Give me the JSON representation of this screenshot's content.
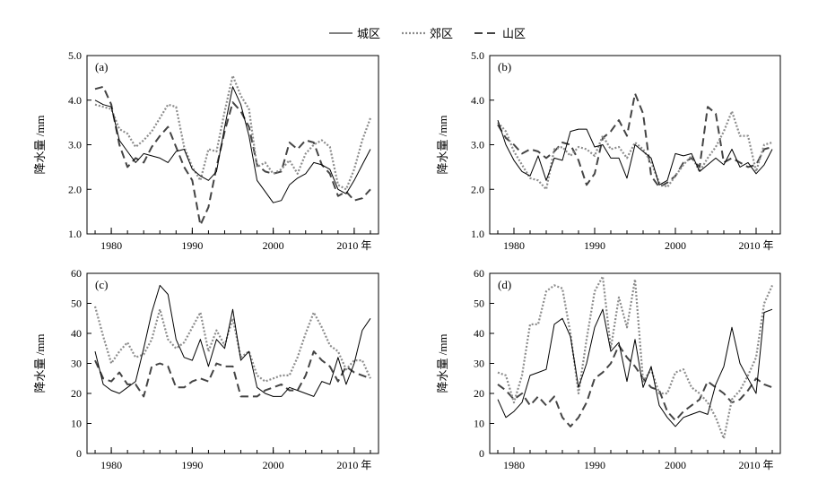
{
  "legend": {
    "items": [
      {
        "name": "城区",
        "color": "#000000",
        "style": "solid"
      },
      {
        "name": "郊区",
        "color": "#8c8c8c",
        "style": "dotted"
      },
      {
        "name": "山区",
        "color": "#444444",
        "style": "dashed"
      }
    ],
    "placement": "top-center"
  },
  "chart_data": [
    {
      "type": "line",
      "panel_label": "(a)",
      "ylabel": "降水量 /mm",
      "xlabel": "年",
      "ylim": [
        1.0,
        5.0
      ],
      "yticks": [
        "1.0",
        "2.0",
        "3.0",
        "4.0",
        "5.0"
      ],
      "xlim": [
        1977,
        2013
      ],
      "xticks": [
        1980,
        1990,
        2000,
        2010
      ],
      "grid": false,
      "x": [
        1978,
        1979,
        1980,
        1981,
        1982,
        1983,
        1984,
        1985,
        1986,
        1987,
        1988,
        1989,
        1990,
        1991,
        1992,
        1993,
        1994,
        1995,
        1996,
        1997,
        1998,
        1999,
        2000,
        2001,
        2002,
        2003,
        2004,
        2005,
        2006,
        2007,
        2008,
        2009,
        2010,
        2011,
        2012
      ],
      "series": [
        {
          "name": "城区",
          "values": [
            4.0,
            3.9,
            3.85,
            3.1,
            2.85,
            2.6,
            2.8,
            2.75,
            2.7,
            2.6,
            2.85,
            2.9,
            2.45,
            2.3,
            2.2,
            2.4,
            3.4,
            4.3,
            3.9,
            3.2,
            2.2,
            1.95,
            1.7,
            1.75,
            2.1,
            2.25,
            2.35,
            2.6,
            2.55,
            2.45,
            2.0,
            1.9,
            2.2,
            2.55,
            2.9
          ]
        },
        {
          "name": "郊区",
          "values": [
            3.9,
            3.85,
            3.8,
            3.35,
            3.25,
            2.95,
            3.1,
            3.3,
            3.6,
            3.9,
            3.85,
            2.95,
            2.5,
            2.2,
            2.9,
            2.85,
            3.75,
            4.55,
            4.1,
            3.8,
            2.5,
            2.6,
            2.35,
            2.45,
            2.65,
            2.35,
            2.8,
            3.0,
            3.1,
            2.95,
            2.1,
            2.0,
            2.45,
            3.1,
            3.6
          ]
        },
        {
          "name": "山区",
          "values": [
            4.25,
            4.3,
            3.9,
            3.0,
            2.5,
            2.7,
            2.6,
            2.95,
            3.2,
            3.4,
            2.95,
            2.5,
            2.2,
            1.2,
            1.6,
            2.5,
            3.3,
            3.95,
            3.75,
            3.4,
            2.55,
            2.4,
            2.35,
            2.4,
            3.05,
            2.9,
            3.1,
            3.05,
            2.55,
            2.35,
            1.85,
            1.95,
            1.75,
            1.8,
            2.0
          ]
        }
      ]
    },
    {
      "type": "line",
      "panel_label": "(b)",
      "ylabel": "降水量 /mm",
      "xlabel": "年",
      "ylim": [
        1.0,
        5.0
      ],
      "yticks": [
        "1.0",
        "2.0",
        "3.0",
        "4.0",
        "5.0"
      ],
      "xlim": [
        1977,
        2013
      ],
      "xticks": [
        1980,
        1990,
        2000,
        2010
      ],
      "grid": false,
      "x": [
        1978,
        1979,
        1980,
        1981,
        1982,
        1983,
        1984,
        1985,
        1986,
        1987,
        1988,
        1989,
        1990,
        1991,
        1992,
        1993,
        1994,
        1995,
        1996,
        1997,
        1998,
        1999,
        2000,
        2001,
        2002,
        2003,
        2004,
        2005,
        2006,
        2007,
        2008,
        2009,
        2010,
        2011,
        2012
      ],
      "series": [
        {
          "name": "城区",
          "values": [
            3.55,
            3.0,
            2.65,
            2.4,
            2.3,
            2.75,
            2.2,
            2.7,
            2.65,
            3.3,
            3.35,
            3.35,
            2.95,
            3.0,
            2.7,
            2.7,
            2.25,
            3.0,
            2.85,
            2.7,
            2.1,
            2.2,
            2.8,
            2.75,
            2.8,
            2.4,
            2.55,
            2.7,
            2.55,
            2.9,
            2.5,
            2.6,
            2.35,
            2.55,
            2.9
          ]
        },
        {
          "name": "郊区",
          "values": [
            3.5,
            3.3,
            2.85,
            2.55,
            2.25,
            2.2,
            2.0,
            2.9,
            2.95,
            2.75,
            2.95,
            2.9,
            2.75,
            3.2,
            2.9,
            2.95,
            2.7,
            3.05,
            2.9,
            2.6,
            2.15,
            2.05,
            2.3,
            2.55,
            2.75,
            2.4,
            2.7,
            2.95,
            3.3,
            3.75,
            3.2,
            3.2,
            2.4,
            3.0,
            3.05
          ]
        },
        {
          "name": "山区",
          "values": [
            3.45,
            3.15,
            3.0,
            2.8,
            2.9,
            2.85,
            2.7,
            2.85,
            3.05,
            3.0,
            2.65,
            2.1,
            2.35,
            3.15,
            3.3,
            3.55,
            3.2,
            4.15,
            3.7,
            2.3,
            2.05,
            2.15,
            2.3,
            2.6,
            2.7,
            2.5,
            3.85,
            3.7,
            2.6,
            2.7,
            2.6,
            2.5,
            2.55,
            2.9,
            2.95
          ]
        }
      ]
    },
    {
      "type": "line",
      "panel_label": "(c)",
      "ylabel": "降水量 /mm",
      "xlabel": "年",
      "ylim": [
        0,
        60
      ],
      "yticks": [
        "0",
        "10",
        "20",
        "30",
        "40",
        "50",
        "60"
      ],
      "xlim": [
        1977,
        2013
      ],
      "xticks": [
        1980,
        1990,
        2000,
        2010
      ],
      "grid": false,
      "x": [
        1978,
        1979,
        1980,
        1981,
        1982,
        1983,
        1984,
        1985,
        1986,
        1987,
        1988,
        1989,
        1990,
        1991,
        1992,
        1993,
        1994,
        1995,
        1996,
        1997,
        1998,
        1999,
        2000,
        2001,
        2002,
        2003,
        2004,
        2005,
        2006,
        2007,
        2008,
        2009,
        2010,
        2011,
        2012
      ],
      "series": [
        {
          "name": "城区",
          "values": [
            34,
            23,
            21,
            20,
            22,
            24,
            35,
            47,
            56,
            53,
            38,
            32,
            31,
            38,
            29,
            38,
            35,
            48,
            31,
            34,
            22,
            20,
            19,
            19,
            22,
            21,
            20,
            19,
            24,
            23,
            32,
            23,
            30,
            41,
            45
          ]
        },
        {
          "name": "郊区",
          "values": [
            49,
            39,
            30,
            34,
            37,
            32,
            33,
            38,
            48,
            38,
            35,
            37,
            42,
            47,
            34,
            41,
            36,
            45,
            32,
            34,
            26,
            24,
            25,
            26,
            26,
            32,
            40,
            47,
            42,
            36,
            34,
            28,
            31,
            31,
            25
          ]
        },
        {
          "name": "山区",
          "values": [
            31,
            25,
            24,
            27,
            23,
            23,
            19,
            29,
            30,
            29,
            22,
            22,
            24,
            25,
            24,
            30,
            29,
            29,
            19,
            19,
            19,
            21,
            22,
            23,
            21,
            21,
            26,
            34,
            31,
            29,
            24,
            29,
            27,
            26,
            25
          ]
        }
      ]
    },
    {
      "type": "line",
      "panel_label": "(d)",
      "ylabel": "降水量 /mm",
      "xlabel": "年",
      "ylim": [
        0,
        60
      ],
      "yticks": [
        "0",
        "10",
        "20",
        "30",
        "40",
        "50",
        "60"
      ],
      "xlim": [
        1977,
        2013
      ],
      "xticks": [
        1980,
        1990,
        2000,
        2010
      ],
      "grid": false,
      "x": [
        1978,
        1979,
        1980,
        1981,
        1982,
        1983,
        1984,
        1985,
        1986,
        1987,
        1988,
        1989,
        1990,
        1991,
        1992,
        1993,
        1994,
        1995,
        1996,
        1997,
        1998,
        1999,
        2000,
        2001,
        2002,
        2003,
        2004,
        2005,
        2006,
        2007,
        2008,
        2009,
        2010,
        2011,
        2012
      ],
      "series": [
        {
          "name": "城区",
          "values": [
            18,
            12,
            14,
            17,
            26,
            27,
            28,
            43,
            45,
            39,
            22,
            30,
            42,
            48,
            34,
            37,
            24,
            38,
            22,
            29,
            16,
            12,
            9,
            12,
            13,
            14,
            13,
            23,
            29,
            42,
            30,
            25,
            20,
            47,
            48
          ]
        },
        {
          "name": "郊区",
          "values": [
            27,
            26,
            17,
            26,
            43,
            43,
            54,
            56,
            55,
            40,
            20,
            38,
            54,
            59,
            35,
            52,
            42,
            58,
            24,
            28,
            20,
            20,
            27,
            28,
            22,
            20,
            17,
            12,
            5,
            18,
            21,
            26,
            32,
            50,
            56
          ]
        },
        {
          "name": "山区",
          "values": [
            23,
            21,
            18,
            20,
            16,
            19,
            16,
            19,
            12,
            9,
            12,
            17,
            25,
            27,
            30,
            36,
            32,
            29,
            25,
            22,
            21,
            14,
            11,
            14,
            16,
            18,
            24,
            22,
            20,
            17,
            18,
            21,
            25,
            23,
            22
          ]
        }
      ]
    }
  ]
}
